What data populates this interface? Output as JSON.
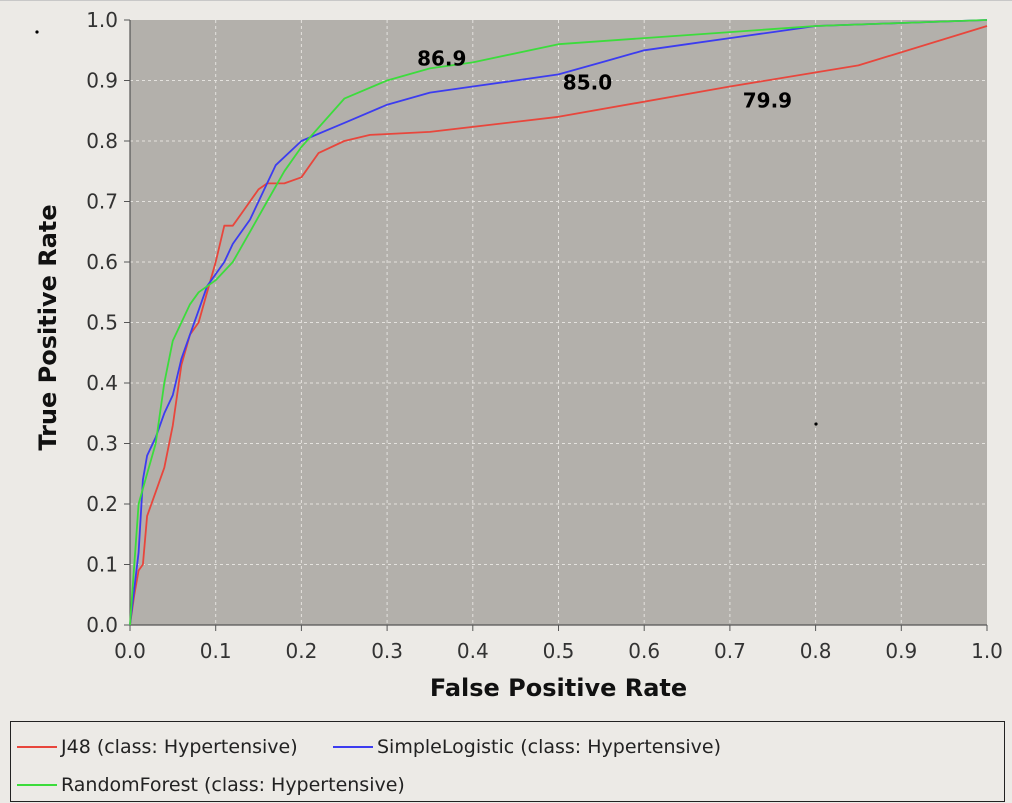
{
  "chart_data": {
    "type": "line",
    "xlabel": "False Positive Rate",
    "ylabel": "True Positive Rate",
    "xlim": [
      0,
      1
    ],
    "ylim": [
      0,
      1
    ],
    "xticks": [
      "0.0",
      "0.1",
      "0.2",
      "0.3",
      "0.4",
      "0.5",
      "0.6",
      "0.7",
      "0.8",
      "0.9",
      "1.0"
    ],
    "yticks": [
      "0.0",
      "0.1",
      "0.2",
      "0.3",
      "0.4",
      "0.5",
      "0.6",
      "0.7",
      "0.8",
      "0.9",
      "1.0"
    ],
    "grid": true,
    "background": "#b3b0ab",
    "legend_position": "bottom",
    "series": [
      {
        "name": "J48 (class: Hypertensive)",
        "color": "#e8463c",
        "x": [
          0,
          0.005,
          0.01,
          0.015,
          0.02,
          0.03,
          0.04,
          0.05,
          0.06,
          0.07,
          0.08,
          0.09,
          0.1,
          0.11,
          0.12,
          0.13,
          0.15,
          0.16,
          0.18,
          0.2,
          0.22,
          0.25,
          0.28,
          0.35,
          0.5,
          0.7,
          0.85,
          1.0
        ],
        "y": [
          0,
          0.05,
          0.09,
          0.1,
          0.18,
          0.22,
          0.26,
          0.33,
          0.43,
          0.48,
          0.5,
          0.55,
          0.6,
          0.66,
          0.66,
          0.68,
          0.72,
          0.73,
          0.73,
          0.74,
          0.78,
          0.8,
          0.81,
          0.815,
          0.84,
          0.89,
          0.925,
          0.99
        ]
      },
      {
        "name": "SimpleLogistic (class: Hypertensive)",
        "color": "#3c3cf0",
        "x": [
          0,
          0.005,
          0.01,
          0.015,
          0.02,
          0.03,
          0.04,
          0.05,
          0.06,
          0.07,
          0.08,
          0.09,
          0.1,
          0.11,
          0.12,
          0.14,
          0.16,
          0.17,
          0.2,
          0.25,
          0.3,
          0.35,
          0.4,
          0.45,
          0.5,
          0.55,
          0.6,
          0.65,
          0.7,
          0.75,
          0.8,
          0.9,
          1.0
        ],
        "y": [
          0,
          0.06,
          0.12,
          0.24,
          0.28,
          0.31,
          0.35,
          0.38,
          0.44,
          0.48,
          0.52,
          0.56,
          0.58,
          0.6,
          0.63,
          0.67,
          0.73,
          0.76,
          0.8,
          0.83,
          0.86,
          0.88,
          0.89,
          0.9,
          0.91,
          0.93,
          0.95,
          0.96,
          0.97,
          0.98,
          0.99,
          0.995,
          1.0
        ]
      },
      {
        "name": "RandomForest (class: Hypertensive)",
        "color": "#3cdc3c",
        "x": [
          0,
          0.005,
          0.01,
          0.02,
          0.03,
          0.04,
          0.05,
          0.06,
          0.07,
          0.08,
          0.1,
          0.12,
          0.14,
          0.16,
          0.18,
          0.2,
          0.25,
          0.3,
          0.35,
          0.4,
          0.5,
          0.6,
          0.7,
          0.8,
          0.9,
          1.0
        ],
        "y": [
          0,
          0.1,
          0.2,
          0.25,
          0.3,
          0.4,
          0.47,
          0.5,
          0.53,
          0.55,
          0.57,
          0.6,
          0.65,
          0.7,
          0.75,
          0.79,
          0.87,
          0.9,
          0.92,
          0.93,
          0.96,
          0.97,
          0.98,
          0.99,
          0.995,
          1.0
        ]
      }
    ],
    "annotations": [
      {
        "text": "86.9",
        "x": 0.335,
        "y": 0.925
      },
      {
        "text": "85.0",
        "x": 0.505,
        "y": 0.885
      },
      {
        "text": "79.9",
        "x": 0.715,
        "y": 0.855
      }
    ]
  }
}
